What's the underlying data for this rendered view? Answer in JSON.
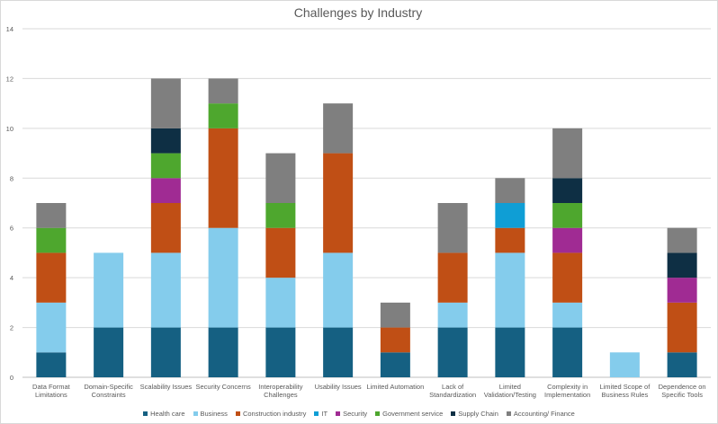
{
  "chart_data": {
    "type": "bar",
    "stacked": true,
    "title": "Challenges by Industry",
    "xlabel": "",
    "ylabel": "",
    "ylim": [
      0,
      14
    ],
    "yticks": [
      "0",
      "2",
      "4",
      "6",
      "8",
      "10",
      "12",
      "14"
    ],
    "grid": true,
    "legend_position": "bottom",
    "categories": [
      [
        "Data Format",
        "Limitations"
      ],
      [
        "Domain-Specific",
        "Constraints"
      ],
      [
        "Scalability Issues"
      ],
      [
        "Security Concerns"
      ],
      [
        "Interoperability",
        "Challenges"
      ],
      [
        "Usability Issues"
      ],
      [
        "Limited Automation"
      ],
      [
        "Lack of",
        "Standardization"
      ],
      [
        "Limited",
        "Validation/Testing"
      ],
      [
        "Complexity in",
        "Implementation"
      ],
      [
        "Limited Scope of",
        "Business Rules"
      ],
      [
        "Dependence on",
        "Specific Tools"
      ]
    ],
    "series": [
      {
        "name": "Health care",
        "color": "#156082",
        "values": [
          1,
          2,
          2,
          2,
          2,
          2,
          1,
          2,
          2,
          2,
          0,
          1
        ]
      },
      {
        "name": "Business",
        "color": "#84CCEC",
        "values": [
          2,
          3,
          3,
          4,
          2,
          3,
          0,
          1,
          3,
          1,
          1,
          0
        ]
      },
      {
        "name": "Construction industry",
        "color": "#C04F15",
        "values": [
          2,
          0,
          2,
          4,
          2,
          4,
          1,
          2,
          1,
          2,
          0,
          2
        ]
      },
      {
        "name": "IT",
        "color": "#0F9ED5",
        "values": [
          0,
          0,
          0,
          0,
          0,
          0,
          0,
          0,
          1,
          0,
          0,
          0
        ]
      },
      {
        "name": "Security",
        "color": "#A02B93",
        "values": [
          0,
          0,
          1,
          0,
          0,
          0,
          0,
          0,
          0,
          1,
          0,
          1
        ]
      },
      {
        "name": "Government service",
        "color": "#4EA72E",
        "values": [
          1,
          0,
          1,
          1,
          1,
          0,
          0,
          0,
          0,
          1,
          0,
          0
        ]
      },
      {
        "name": "Supply Chain",
        "color": "#0E2F44",
        "values": [
          0,
          0,
          1,
          0,
          0,
          0,
          0,
          0,
          0,
          1,
          0,
          1
        ]
      },
      {
        "name": "Accounting/ Finance",
        "color": "#7F7F7F",
        "values": [
          1,
          0,
          2,
          1,
          2,
          2,
          1,
          2,
          1,
          2,
          0,
          1
        ]
      }
    ]
  }
}
